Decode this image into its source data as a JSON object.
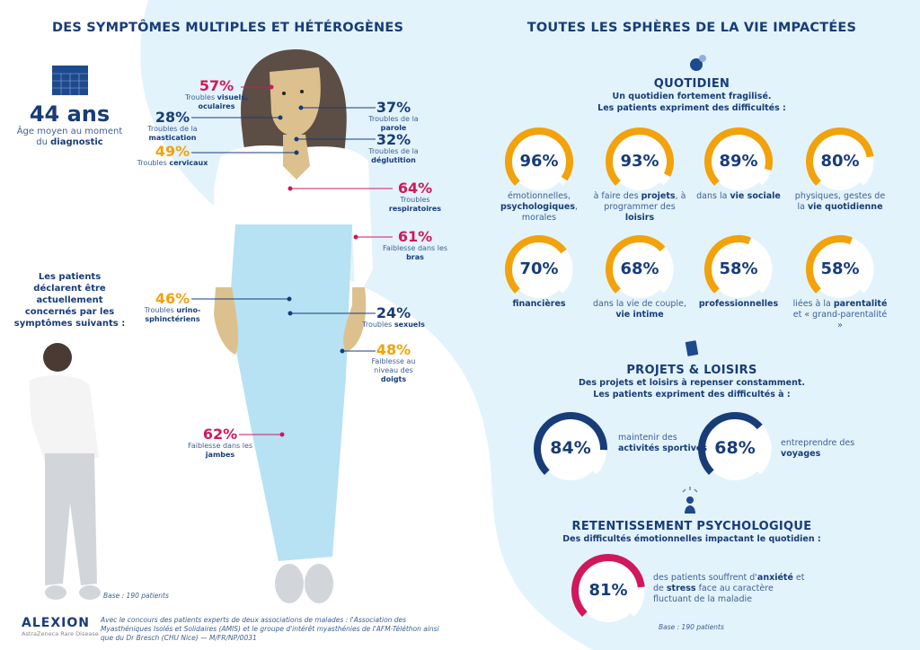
{
  "left": {
    "title": "DES SYMPTÔMES MULTIPLES ET HÉTÉROGÈNES",
    "age_value": "44 ans",
    "age_label": [
      {
        "t": "Âge moyen au moment du "
      },
      {
        "t": "diagnostic",
        "b": true
      }
    ],
    "intro": "Les patients déclarent être actuellement concernés par les symptômes suivants :",
    "symptoms": [
      {
        "pct": "57%",
        "color": "pink",
        "label": [
          {
            "t": "Troubles "
          },
          {
            "t": "visuels, oculaires",
            "b": true
          }
        ]
      },
      {
        "pct": "28%",
        "color": "navy",
        "label": [
          {
            "t": "Troubles de la "
          },
          {
            "t": "mastication",
            "b": true
          }
        ]
      },
      {
        "pct": "49%",
        "color": "orange",
        "label": [
          {
            "t": "Troubles "
          },
          {
            "t": "cervicaux",
            "b": true
          }
        ]
      },
      {
        "pct": "37%",
        "color": "navy",
        "label": [
          {
            "t": "Troubles de la "
          },
          {
            "t": "parole",
            "b": true
          }
        ]
      },
      {
        "pct": "32%",
        "color": "navy",
        "label": [
          {
            "t": "Troubles de la "
          },
          {
            "t": "déglutition",
            "b": true
          }
        ]
      },
      {
        "pct": "64%",
        "color": "pink",
        "label": [
          {
            "t": "Troubles "
          },
          {
            "t": "respiratoires",
            "b": true
          }
        ]
      },
      {
        "pct": "61%",
        "color": "pink",
        "label": [
          {
            "t": "Faiblesse dans les "
          },
          {
            "t": "bras",
            "b": true
          }
        ]
      },
      {
        "pct": "46%",
        "color": "orange",
        "label": [
          {
            "t": "Troubles "
          },
          {
            "t": "urino-sphinctériens",
            "b": true
          }
        ]
      },
      {
        "pct": "24%",
        "color": "navy",
        "label": [
          {
            "t": "Troubles "
          },
          {
            "t": "sexuels",
            "b": true
          }
        ]
      },
      {
        "pct": "48%",
        "color": "orange",
        "label": [
          {
            "t": "Faiblesse au niveau des "
          },
          {
            "t": "doigts",
            "b": true
          }
        ]
      },
      {
        "pct": "62%",
        "color": "pink",
        "label": [
          {
            "t": "Faiblesse dans les "
          },
          {
            "t": "jambes",
            "b": true
          }
        ]
      }
    ],
    "base": "Base : 190 patients"
  },
  "right": {
    "title": "TOUTES LES SPHÈRES DE LA VIE IMPACTÉES",
    "quotidien": {
      "title": "QUOTIDIEN",
      "subtitle1": "Un quotidien fortement fragilisé.",
      "subtitle2": "Les patients expriment des difficultés :",
      "gauges": [
        {
          "value": 96,
          "pct": "96%",
          "label": [
            {
              "t": "émotionnelles, "
            },
            {
              "t": "psychologiques",
              "b": true
            },
            {
              "t": ", morales"
            }
          ]
        },
        {
          "value": 93,
          "pct": "93%",
          "label": [
            {
              "t": "à faire des "
            },
            {
              "t": "projets",
              "b": true
            },
            {
              "t": ", à programmer des "
            },
            {
              "t": "loisirs",
              "b": true
            }
          ]
        },
        {
          "value": 89,
          "pct": "89%",
          "label": [
            {
              "t": "dans la "
            },
            {
              "t": "vie sociale",
              "b": true
            }
          ]
        },
        {
          "value": 80,
          "pct": "80%",
          "label": [
            {
              "t": "physiques, gestes de la "
            },
            {
              "t": "vie quotidienne",
              "b": true
            }
          ]
        },
        {
          "value": 70,
          "pct": "70%",
          "label": [
            {
              "t": "financières",
              "b": true
            }
          ]
        },
        {
          "value": 68,
          "pct": "68%",
          "label": [
            {
              "t": "dans la vie de couple, "
            },
            {
              "t": "vie intime",
              "b": true
            }
          ]
        },
        {
          "value": 58,
          "pct": "58%",
          "label": [
            {
              "t": "professionnelles",
              "b": true
            }
          ]
        },
        {
          "value": 58,
          "pct": "58%",
          "label": [
            {
              "t": "liées à la "
            },
            {
              "t": "parentalité",
              "b": true
            },
            {
              "t": " et « grand-parentalité »"
            }
          ]
        }
      ]
    },
    "projets": {
      "title": "PROJETS & LOISIRS",
      "subtitle1": "Des projets et loisirs à repenser constamment.",
      "subtitle2": "Les patients expriment des difficultés à :",
      "gauges": [
        {
          "value": 84,
          "pct": "84%",
          "label": [
            {
              "t": "maintenir des "
            },
            {
              "t": "activités sportives",
              "b": true
            }
          ]
        },
        {
          "value": 68,
          "pct": "68%",
          "label": [
            {
              "t": "entreprendre des "
            },
            {
              "t": "voyages",
              "b": true
            }
          ]
        }
      ]
    },
    "psycho": {
      "title": "RETENTISSEMENT PSYCHOLOGIQUE",
      "subtitle": "Des difficultés émotionnelles impactant le quotidien :",
      "gauge": {
        "value": 81,
        "pct": "81%",
        "label": [
          {
            "t": "des patients souffrent d'"
          },
          {
            "t": "anxiété",
            "b": true
          },
          {
            "t": " et de "
          },
          {
            "t": "stress",
            "b": true
          },
          {
            "t": " face au caractère fluctuant de la maladie"
          }
        ]
      }
    },
    "base": "Base : 190 patients"
  },
  "footer": {
    "logo": "ALEXION",
    "logo_sub": "AstraZeneca Rare Disease",
    "text": "Avec le concours des patients experts de deux associations de malades : l'Association des Myasthéniques Isolés et Solidaires (AMIS) et le groupe d'intérêt myasthénies de l'AFM-Téléthon ainsi que du Dr Bresch (CHU Nice) — M/FR/NP/0031"
  },
  "colors": {
    "navy": "#173c78",
    "pink": "#d0185c",
    "orange": "#f2a20a",
    "bg": "#e3f3fb"
  }
}
